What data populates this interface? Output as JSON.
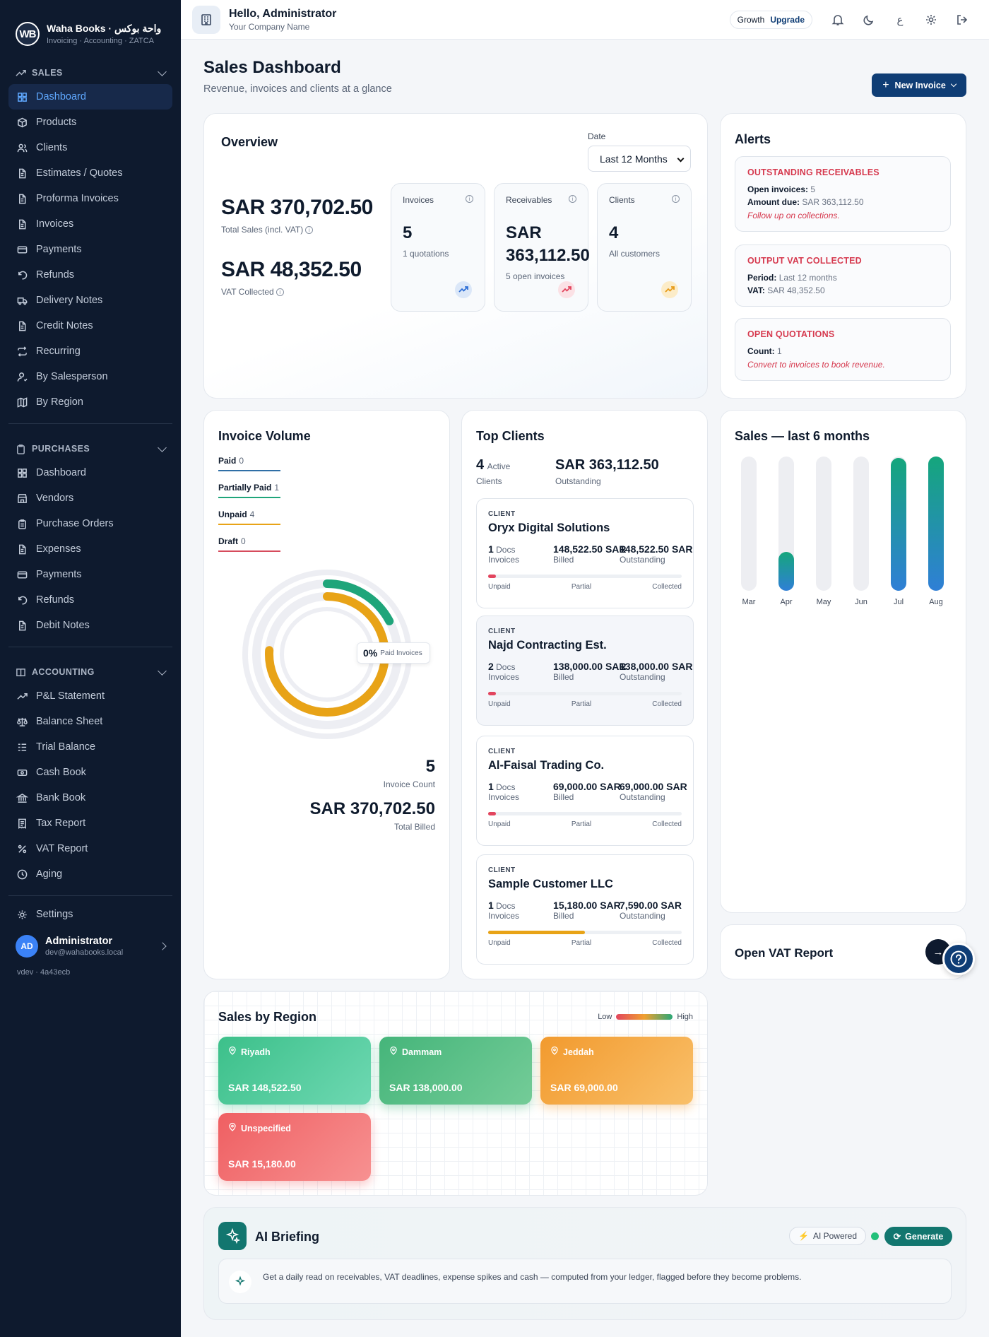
{
  "brand": {
    "logo": "WB",
    "name": "Waha Books · واحة بوكس",
    "tagline": "Invoicing · Accounting · ZATCA"
  },
  "sidebar": {
    "sales": {
      "title": "SALES",
      "items": [
        {
          "label": "Dashboard",
          "icon": "grid-icon"
        },
        {
          "label": "Products",
          "icon": "box-icon"
        },
        {
          "label": "Clients",
          "icon": "users-icon"
        },
        {
          "label": "Estimates / Quotes",
          "icon": "file-icon"
        },
        {
          "label": "Proforma Invoices",
          "icon": "file-icon"
        },
        {
          "label": "Invoices",
          "icon": "file-icon"
        },
        {
          "label": "Payments",
          "icon": "card-icon"
        },
        {
          "label": "Refunds",
          "icon": "undo-icon"
        },
        {
          "label": "Delivery Notes",
          "icon": "truck-icon"
        },
        {
          "label": "Credit Notes",
          "icon": "file-icon"
        },
        {
          "label": "Recurring",
          "icon": "repeat-icon"
        },
        {
          "label": "By Salesperson",
          "icon": "user-icon"
        },
        {
          "label": "By Region",
          "icon": "map-icon"
        }
      ]
    },
    "purchases": {
      "title": "PURCHASES",
      "items": [
        {
          "label": "Dashboard",
          "icon": "grid-icon"
        },
        {
          "label": "Vendors",
          "icon": "store-icon"
        },
        {
          "label": "Purchase Orders",
          "icon": "clipboard-icon"
        },
        {
          "label": "Expenses",
          "icon": "file-icon"
        },
        {
          "label": "Payments",
          "icon": "card-icon"
        },
        {
          "label": "Refunds",
          "icon": "undo-icon"
        },
        {
          "label": "Debit Notes",
          "icon": "file-icon"
        }
      ]
    },
    "accounting": {
      "title": "ACCOUNTING",
      "items": [
        {
          "label": "P&L Statement",
          "icon": "trend-icon"
        },
        {
          "label": "Balance Sheet",
          "icon": "scale-icon"
        },
        {
          "label": "Trial Balance",
          "icon": "list-icon"
        },
        {
          "label": "Cash Book",
          "icon": "cash-icon"
        },
        {
          "label": "Bank Book",
          "icon": "bank-icon"
        },
        {
          "label": "Tax Report",
          "icon": "receipt-icon"
        },
        {
          "label": "VAT Report",
          "icon": "percent-icon"
        },
        {
          "label": "Aging",
          "icon": "clock-icon"
        }
      ]
    },
    "settings": "Settings",
    "user": {
      "initials": "AD",
      "name": "Administrator",
      "email": "dev@wahabooks.local"
    },
    "version": "vdev · 4a43ecb"
  },
  "topbar": {
    "greeting": "Hello, Administrator",
    "company": "Your Company Name",
    "plan": "Growth",
    "upgrade": "Upgrade",
    "lang": "ع"
  },
  "page": {
    "title": "Sales Dashboard",
    "subtitle": "Revenue, invoices and clients at a glance",
    "new_invoice": "New Invoice"
  },
  "overview": {
    "title": "Overview",
    "date_label": "Date",
    "date_value": "Last 12 Months",
    "total_sales": "SAR 370,702.50",
    "total_sales_label": "Total Sales (incl. VAT)",
    "vat": "SAR 48,352.50",
    "vat_label": "VAT Collected",
    "stats": [
      {
        "title": "Invoices",
        "value": "5",
        "sub": "1 quotations",
        "color": "#2f6fd6",
        "bg": "#dbe7f8"
      },
      {
        "title": "Receivables",
        "value": "SAR 363,112.50",
        "sub": "5 open invoices",
        "color": "#e2455e",
        "bg": "#fbe1e5"
      },
      {
        "title": "Clients",
        "value": "4",
        "sub": "All customers",
        "color": "#e79a17",
        "bg": "#fcecc8"
      }
    ]
  },
  "alerts": {
    "title": "Alerts",
    "items": [
      {
        "head": "OUTSTANDING RECEIVABLES",
        "lines": [
          {
            "k": "Open invoices:",
            "v": "5"
          },
          {
            "k": "Amount due:",
            "v": "SAR 363,112.50"
          }
        ],
        "note": "Follow up on collections."
      },
      {
        "head": "OUTPUT VAT COLLECTED",
        "lines": [
          {
            "k": "Period:",
            "v": "Last 12 months"
          },
          {
            "k": "VAT:",
            "v": "SAR 48,352.50"
          }
        ],
        "note": ""
      },
      {
        "head": "OPEN QUOTATIONS",
        "lines": [
          {
            "k": "Count:",
            "v": "1"
          }
        ],
        "note": "Convert to invoices to book revenue."
      }
    ]
  },
  "invoice_volume": {
    "title": "Invoice Volume",
    "legend": [
      {
        "label": "Paid",
        "count": "0",
        "color": "#2f6fa6"
      },
      {
        "label": "Partially Paid",
        "count": "1",
        "color": "#1fa57a"
      },
      {
        "label": "Unpaid",
        "count": "4",
        "color": "#e8a317"
      },
      {
        "label": "Draft",
        "count": "0",
        "color": "#d64b5c"
      }
    ],
    "pct": "0%",
    "pct_label": "Paid Invoices",
    "count": "5",
    "count_label": "Invoice Count",
    "billed": "SAR 370,702.50",
    "billed_label": "Total Billed"
  },
  "top_clients": {
    "title": "Top Clients",
    "active": "4",
    "active_word": "Active",
    "active_label": "Clients",
    "outstanding": "SAR 363,112.50",
    "outstanding_label": "Outstanding",
    "tag": "CLIENT",
    "axis": [
      "Unpaid",
      "Partial",
      "Collected"
    ],
    "docs_word": "Docs",
    "inv_label": "Invoices",
    "billed_label": "Billed",
    "out_label": "Outstanding",
    "items": [
      {
        "name": "Oryx Digital Solutions",
        "docs": "1",
        "billed": "148,522.50 SAR",
        "outstanding": "148,522.50 SAR",
        "progress": 0.04,
        "color": "#e2455e"
      },
      {
        "name": "Najd Contracting Est.",
        "docs": "2",
        "billed": "138,000.00 SAR",
        "outstanding": "138,000.00 SAR",
        "progress": 0.04,
        "color": "#e2455e"
      },
      {
        "name": "Al-Faisal Trading Co.",
        "docs": "1",
        "billed": "69,000.00 SAR",
        "outstanding": "69,000.00 SAR",
        "progress": 0.04,
        "color": "#e2455e"
      },
      {
        "name": "Sample Customer LLC",
        "docs": "1",
        "billed": "15,180.00 SAR",
        "outstanding": "7,590.00 SAR",
        "progress": 0.5,
        "color": "#e8a317"
      }
    ]
  },
  "chart_data": {
    "type": "bar",
    "title": "Sales — last 6 months",
    "categories": [
      "Mar",
      "Apr",
      "May",
      "Jun",
      "Jul",
      "Aug"
    ],
    "values": [
      0,
      0.29,
      0,
      0,
      0.99,
      1.0
    ],
    "ylim": [
      0,
      1
    ],
    "grid": false
  },
  "vat_report": {
    "label": "Open VAT Report"
  },
  "regions": {
    "title": "Sales by Region",
    "low": "Low",
    "high": "High",
    "items": [
      {
        "name": "Riyadh",
        "value": "SAR 148,522.50",
        "c1": "#3cc08a",
        "c2": "#6ed8b2"
      },
      {
        "name": "Dammam",
        "value": "SAR 138,000.00",
        "c1": "#45b57a",
        "c2": "#74cc98"
      },
      {
        "name": "Jeddah",
        "value": "SAR 69,000.00",
        "c1": "#f29a2e",
        "c2": "#f9c06a"
      },
      {
        "name": "Unspecified",
        "value": "SAR 15,180.00",
        "c1": "#ef5f62",
        "c2": "#f79191"
      }
    ]
  },
  "ai": {
    "title": "AI Briefing",
    "badge": "AI Powered",
    "generate": "Generate",
    "text": "Get a daily read on receivables, VAT deadlines, expense spikes and cash — computed from your ledger, flagged before they become problems."
  }
}
